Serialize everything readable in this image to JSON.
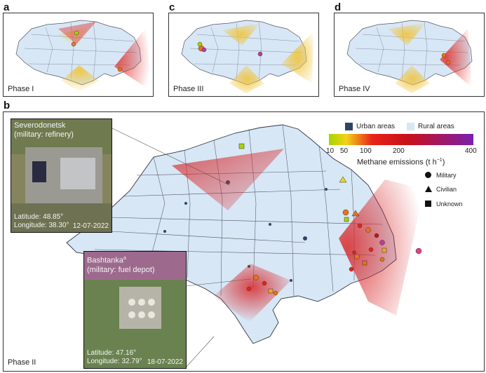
{
  "panel_labels": {
    "a": "a",
    "c": "c",
    "d": "d",
    "b": "b"
  },
  "phase_labels": {
    "phase1": "Phase I",
    "phase3": "Phase III",
    "phase4": "Phase IV",
    "phase2": "Phase II"
  },
  "inset_severodonetsk": {
    "title_line1": "Severodonetsk",
    "title_line2": "(military: refinery)",
    "lat": "Latitude: 48.85°",
    "lon": "Longitude: 38.30°",
    "date": "12-07-2022"
  },
  "inset_bashtanka": {
    "title_line1": "Bashtanka",
    "title_sup": "a",
    "title_line2": "(military: fuel depot)",
    "lat": "Latitude: 47.16°",
    "lon": "Longitude: 32.79°",
    "date": "18-07-2022"
  },
  "legend": {
    "urban": "Urban areas",
    "rural": "Rural areas",
    "colorbar_ticks": [
      "10",
      "50",
      "100",
      "200",
      "400"
    ],
    "colorbar_title": "Methane emissions (t h",
    "colorbar_exp": "−1",
    "colorbar_close": ")",
    "military": "Military",
    "civilian": "Civilian",
    "unknown": "Unknown",
    "urban_color": "#2f4466",
    "rural_color": "#d7e7f6",
    "colorbar_stops": [
      "#a6d400",
      "#f3d21a",
      "#e8231a",
      "#c8111a",
      "#7a1fb0"
    ]
  }
}
